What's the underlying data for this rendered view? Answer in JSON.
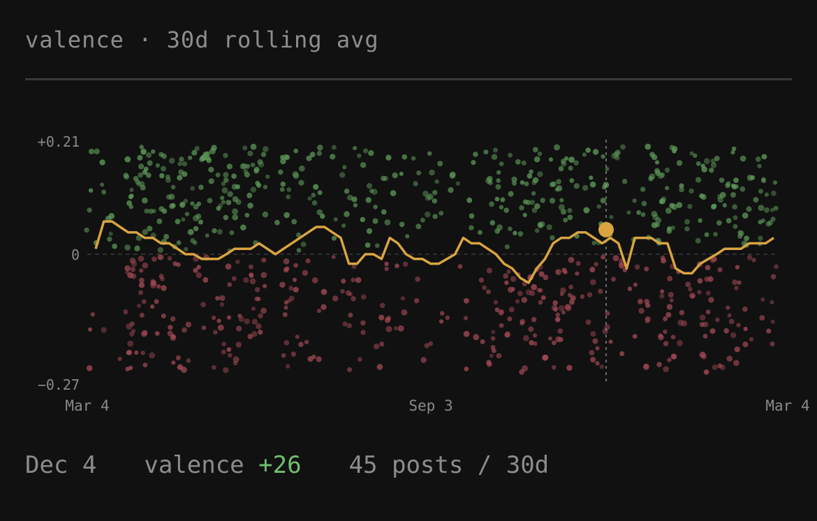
{
  "header": {
    "title": "valence · 30d rolling avg"
  },
  "colors": {
    "background": "#111111",
    "line": "#d9a441",
    "positive_dot": "#5f9a5a",
    "negative_dot": "#a34a55",
    "positive_text": "#6fbf6f"
  },
  "chart_data": {
    "type": "line",
    "title": "valence · 30d rolling avg",
    "ylim": [
      -0.27,
      0.21
    ],
    "y_ticks": [
      "+0.21",
      "0",
      "−0.27"
    ],
    "x_ticks": [
      "Mar 4",
      "Sep 3",
      "Mar 4"
    ],
    "x_range": [
      "Mar 4",
      "Mar 4"
    ],
    "zero_line": true,
    "cursor": {
      "date": "Dec 4",
      "value": 0.026
    },
    "series": [
      {
        "kind": "rolling_average",
        "color": "#d9a441",
        "values": [
          0.01,
          0.06,
          0.06,
          0.05,
          0.04,
          0.04,
          0.03,
          0.03,
          0.02,
          0.02,
          0.01,
          0.0,
          0.0,
          -0.01,
          -0.01,
          -0.01,
          0.0,
          0.01,
          0.01,
          0.01,
          0.02,
          0.01,
          0.0,
          0.01,
          0.02,
          0.03,
          0.04,
          0.05,
          0.05,
          0.04,
          0.03,
          -0.02,
          -0.02,
          0.0,
          0.0,
          -0.01,
          0.03,
          0.02,
          0.0,
          -0.01,
          -0.01,
          -0.02,
          -0.02,
          -0.01,
          0.0,
          0.03,
          0.02,
          0.02,
          0.01,
          0.0,
          -0.02,
          -0.03,
          -0.05,
          -0.06,
          -0.03,
          -0.01,
          0.02,
          0.03,
          0.03,
          0.04,
          0.04,
          0.03,
          0.02,
          0.03,
          0.02,
          -0.03,
          0.03,
          0.03,
          0.03,
          0.02,
          0.02,
          -0.03,
          -0.04,
          -0.04,
          -0.02,
          -0.01,
          0.0,
          0.01,
          0.01,
          0.01,
          0.02,
          0.02,
          0.02,
          0.03
        ]
      },
      {
        "kind": "posts",
        "positive_color": "#5f9a5a",
        "negative_color": "#a34a55",
        "value_range": [
          -0.24,
          0.21
        ]
      }
    ]
  },
  "footer": {
    "date": "Dec 4",
    "metric_label": "valence",
    "metric_value": "+26",
    "posts": "45 posts / 30d"
  }
}
